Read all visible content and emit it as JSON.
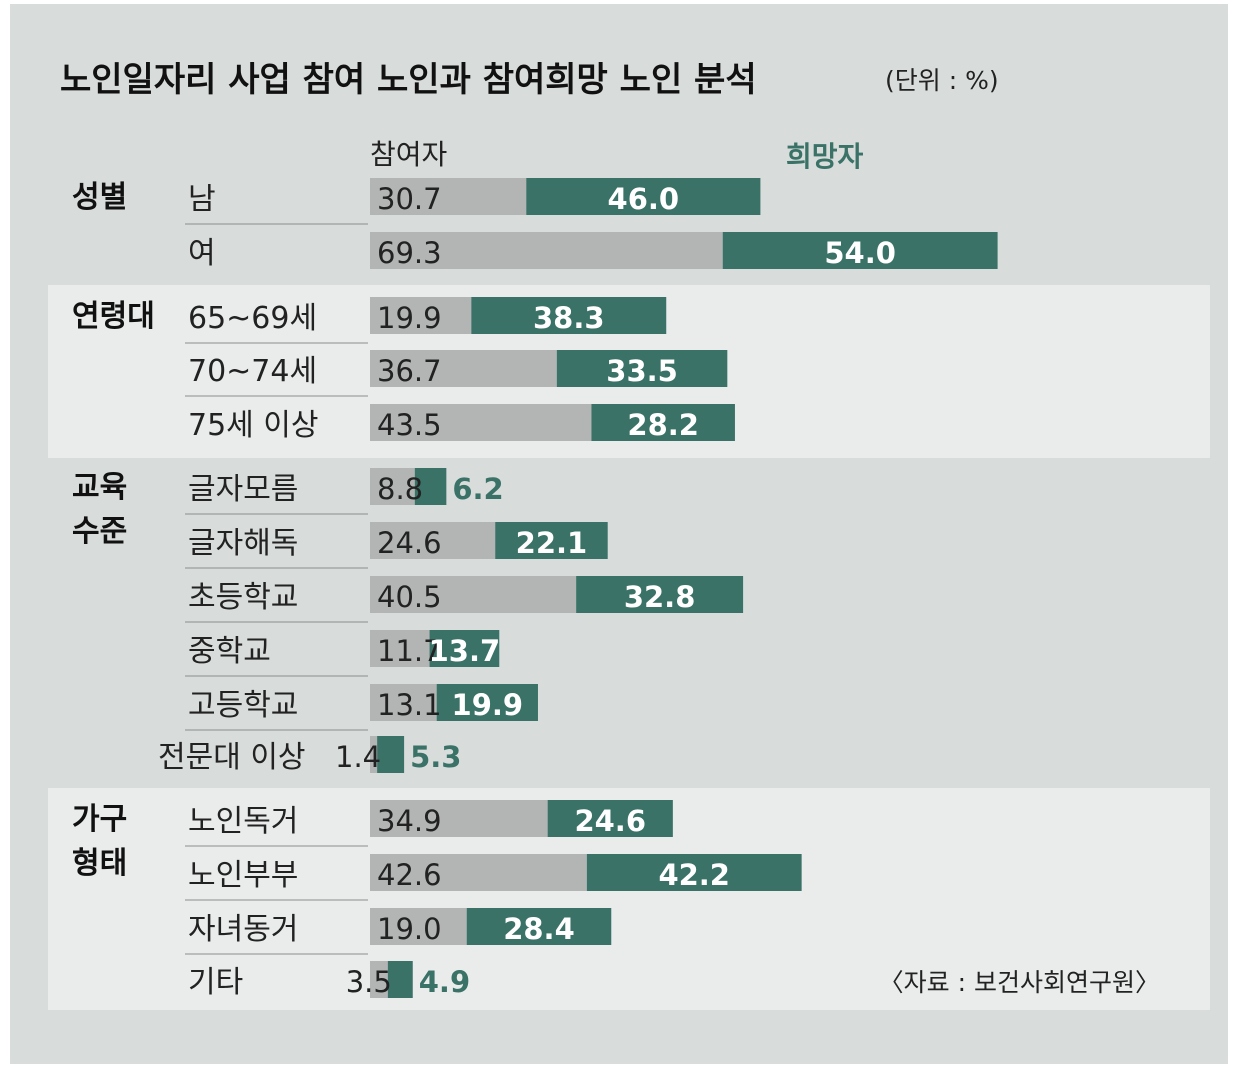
{
  "chart_data": {
    "type": "bar",
    "title": "노인일자리 사업 참여 노인과 참여희망 노인 분석",
    "unit": "(단위 : %)",
    "source": "〈자료 : 보건사회연구원〉",
    "series": [
      {
        "name": "참여자",
        "color": "#b2b5b4"
      },
      {
        "name": "희망자",
        "color": "#3a7267"
      }
    ],
    "groups": [
      {
        "label": [
          "성별"
        ],
        "rows": [
          {
            "category": "남",
            "participant": 30.7,
            "hope": 46.0,
            "participant_label": "30.7",
            "hope_label": "46.0"
          },
          {
            "category": "여",
            "participant": 69.3,
            "hope": 54.0,
            "participant_label": "69.3",
            "hope_label": "54.0"
          }
        ]
      },
      {
        "label": [
          "연령대"
        ],
        "rows": [
          {
            "category": "65~69세",
            "participant": 19.9,
            "hope": 38.3,
            "participant_label": "19.9",
            "hope_label": "38.3"
          },
          {
            "category": "70~74세",
            "participant": 36.7,
            "hope": 33.5,
            "participant_label": "36.7",
            "hope_label": "33.5"
          },
          {
            "category": "75세 이상",
            "participant": 43.5,
            "hope": 28.2,
            "participant_label": "43.5",
            "hope_label": "28.2"
          }
        ]
      },
      {
        "label": [
          "교육",
          "수준"
        ],
        "rows": [
          {
            "category": "글자모름",
            "participant": 8.8,
            "hope": 6.2,
            "participant_label": "8.8",
            "hope_label": "6.2"
          },
          {
            "category": "글자해독",
            "participant": 24.6,
            "hope": 22.1,
            "participant_label": "24.6",
            "hope_label": "22.1"
          },
          {
            "category": "초등학교",
            "participant": 40.5,
            "hope": 32.8,
            "participant_label": "40.5",
            "hope_label": "32.8"
          },
          {
            "category": "중학교",
            "participant": 11.7,
            "hope": 13.7,
            "participant_label": "11.7",
            "hope_label": "13.7"
          },
          {
            "category": "고등학교",
            "participant": 13.1,
            "hope": 19.9,
            "participant_label": "13.1",
            "hope_label": "19.9"
          },
          {
            "category": "전문대 이상",
            "participant": 1.4,
            "hope": 5.3,
            "participant_label": "1.4",
            "hope_label": "5.3"
          }
        ]
      },
      {
        "label": [
          "가구",
          "형태"
        ],
        "rows": [
          {
            "category": "노인독거",
            "participant": 34.9,
            "hope": 24.6,
            "participant_label": "34.9",
            "hope_label": "24.6"
          },
          {
            "category": "노인부부",
            "participant": 42.6,
            "hope": 42.2,
            "participant_label": "42.6",
            "hope_label": "42.2"
          },
          {
            "category": "자녀동거",
            "participant": 19.0,
            "hope": 28.4,
            "participant_label": "19.0",
            "hope_label": "28.4"
          },
          {
            "category": "기타",
            "participant": 3.5,
            "hope": 4.9,
            "participant_label": "3.5",
            "hope_label": "4.9"
          }
        ]
      }
    ]
  }
}
